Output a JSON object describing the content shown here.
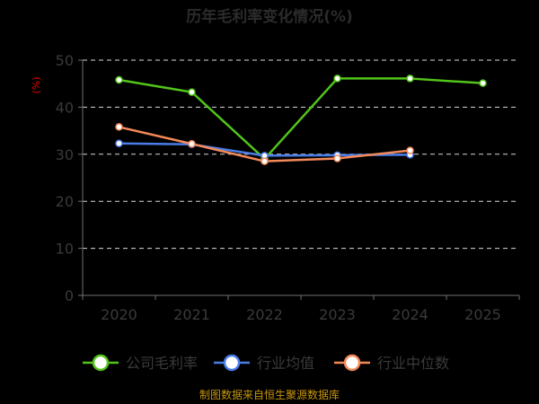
{
  "chart_data": {
    "type": "line",
    "title": "历年毛利率变化情况(%)",
    "ylabel": "(%)",
    "categories": [
      "2020",
      "2021",
      "2022",
      "2023",
      "2024",
      "2025"
    ],
    "ylim": [
      0,
      50
    ],
    "yticks": [
      0,
      10,
      20,
      30,
      40,
      50
    ],
    "grid": true,
    "legend_position": "bottom",
    "series": [
      {
        "name": "公司毛利率",
        "color": "#52c41a",
        "values": [
          45.8,
          43.2,
          29.0,
          46.1,
          46.1,
          45.1
        ]
      },
      {
        "name": "行业均值",
        "color": "#4a7de8",
        "values": [
          32.3,
          32.1,
          29.7,
          29.8,
          29.9,
          null
        ]
      },
      {
        "name": "行业中位数",
        "color": "#f4895a",
        "values": [
          35.8,
          32.2,
          28.5,
          29.1,
          30.8,
          null
        ]
      }
    ]
  },
  "footer": "制图数据来自恒生聚源数据库",
  "colors": {
    "background": "#000000",
    "title": "#2b2b2b",
    "axis": "#707070",
    "tick_label": "#3a3a3a",
    "grid": "#d9d9d9",
    "ylabel": "#e60000",
    "footer": "#c8960c"
  }
}
